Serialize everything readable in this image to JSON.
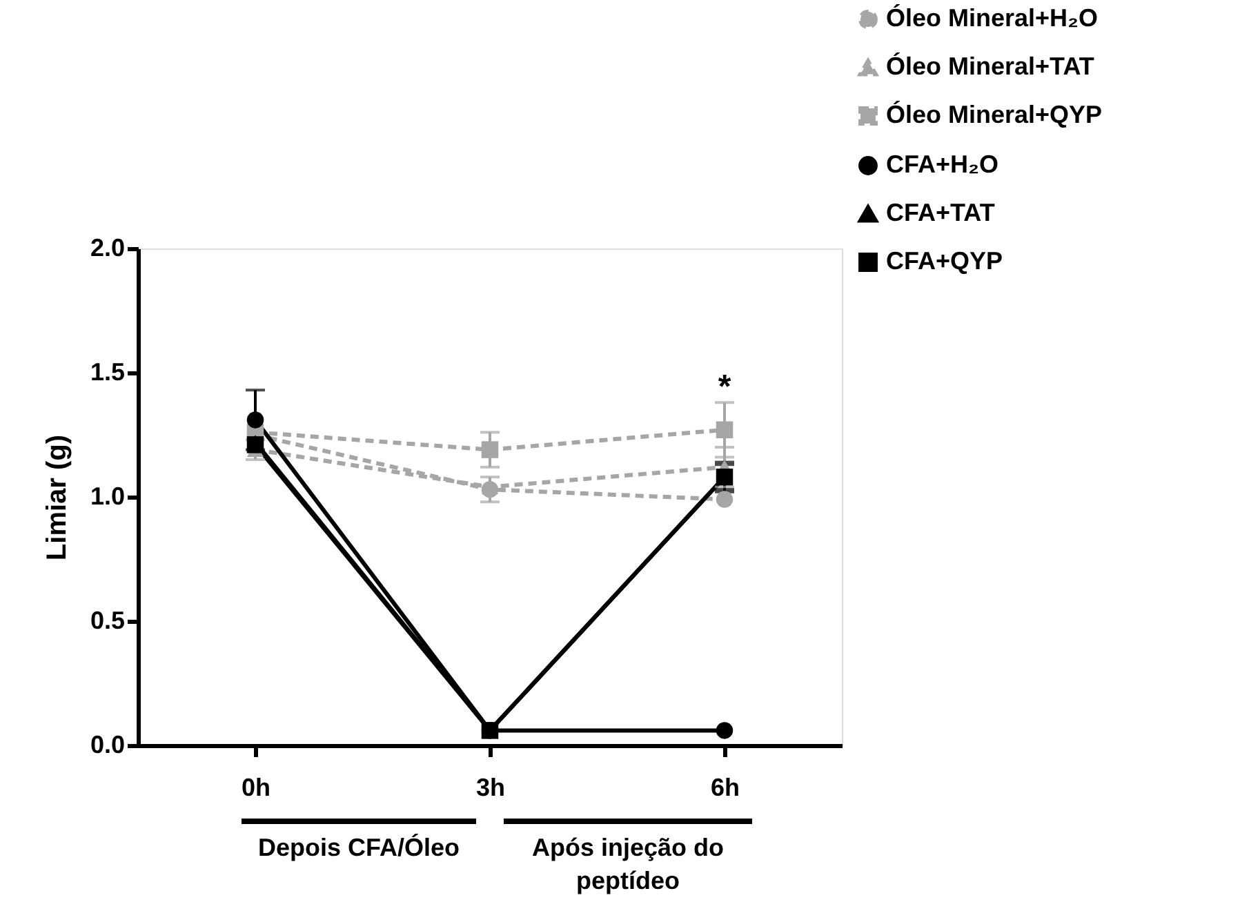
{
  "chart_data": {
    "type": "line",
    "ylabel": "Limiar (g)",
    "categories": [
      "0h",
      "3h",
      "6h"
    ],
    "ylim": [
      0,
      2
    ],
    "yticks": [
      {
        "value": 0,
        "label": "0.0"
      },
      {
        "value": 0.5,
        "label": "0.5"
      },
      {
        "value": 1,
        "label": "1.0"
      },
      {
        "value": 1.5,
        "label": "1.5"
      },
      {
        "value": 2,
        "label": "2.0"
      }
    ],
    "series": [
      {
        "name": "Óleo Mineral+H₂O",
        "color": "#a6a6a6",
        "marker": "circle",
        "line_style": "dashed",
        "values": [
          1.25,
          1.03,
          0.99
        ],
        "errors": [
          null,
          0.05,
          null
        ]
      },
      {
        "name": "Óleo Mineral+TAT",
        "color": "#a6a6a6",
        "marker": "triangle",
        "line_style": "dashed",
        "values": [
          1.19,
          1.04,
          1.12
        ],
        "errors": [
          0.04,
          null,
          0.08
        ]
      },
      {
        "name": "Óleo Mineral+QYP",
        "color": "#a6a6a6",
        "marker": "square",
        "line_style": "dashed",
        "values": [
          1.26,
          1.19,
          1.27
        ],
        "errors": [
          null,
          0.07,
          0.11
        ]
      },
      {
        "name": "CFA+H₂O",
        "color": "#000000",
        "marker": "circle",
        "line_style": "solid",
        "values": [
          1.31,
          0.06,
          0.06
        ],
        "errors": [
          0.12,
          null,
          null
        ]
      },
      {
        "name": "CFA+TAT",
        "color": "#000000",
        "marker": "triangle",
        "line_style": "solid",
        "values": [
          1.22,
          0.06,
          1.08
        ],
        "errors": [
          null,
          null,
          0.06
        ]
      },
      {
        "name": "CFA+QYP",
        "color": "#000000",
        "marker": "square",
        "line_style": "solid",
        "values": [
          1.21,
          0.06,
          1.08
        ],
        "errors": [
          null,
          null,
          0.05
        ]
      }
    ],
    "annotations": [
      "*",
      "Depois CFA/Óleo",
      "Após injeção do peptídeo"
    ],
    "grid": false,
    "legend": "top right"
  }
}
